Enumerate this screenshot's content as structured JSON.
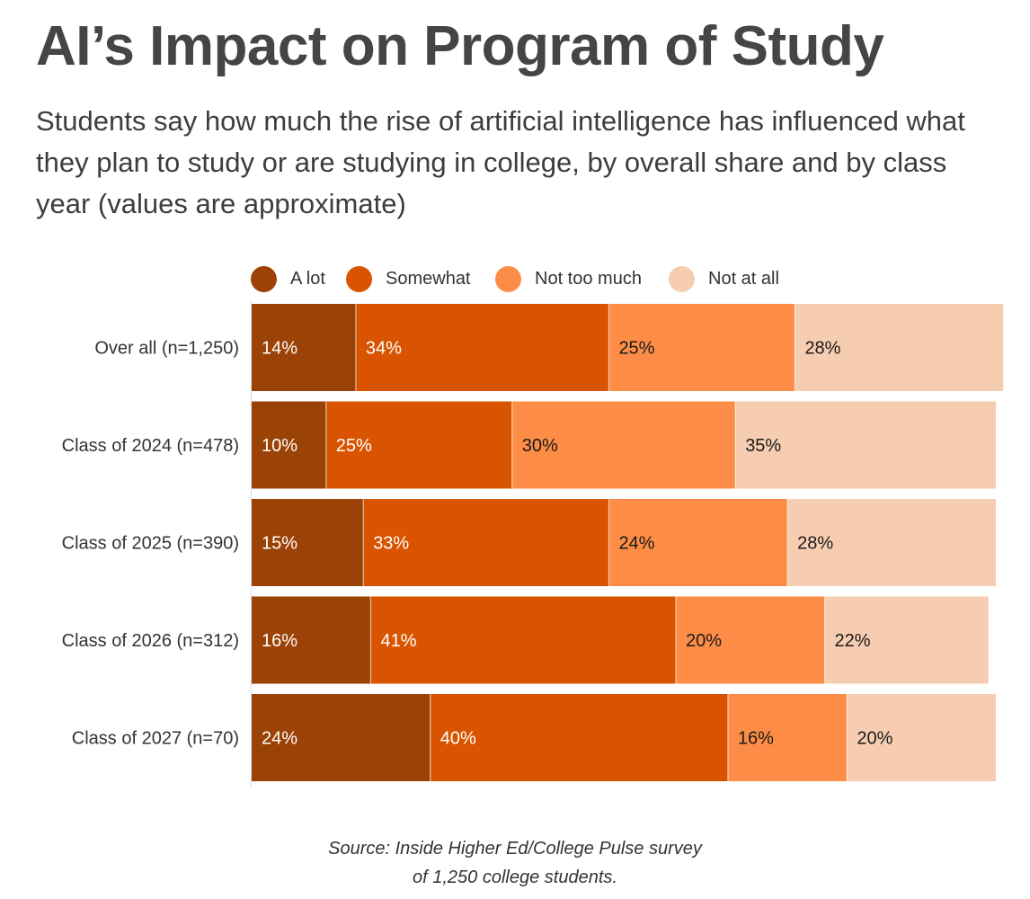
{
  "header": {
    "title": "AI’s Impact on Program of Study",
    "subtitle": "Students say how much the rise of artificial intelligence has influenced what they plan to study or are studying in college, by overall share and by class year (values are approximate)"
  },
  "legend": [
    {
      "label": "A lot",
      "color": "#9b4207"
    },
    {
      "label": "Somewhat",
      "color": "#d95400"
    },
    {
      "label": "Not too much",
      "color": "#fd8d46"
    },
    {
      "label": "Not at all",
      "color": "#f6cdb0"
    }
  ],
  "chart_data": {
    "type": "bar",
    "orientation": "horizontal",
    "stacked": true,
    "categories": [
      "Over all (n=1,250)",
      "Class of 2024 (n=478)",
      "Class of 2025 (n=390)",
      "Class of 2026 (n=312)",
      "Class of 2027 (n=70)"
    ],
    "series": [
      {
        "name": "A lot",
        "color": "#9b4207",
        "values": [
          14,
          10,
          15,
          16,
          24
        ],
        "labels": [
          "14%",
          "10%",
          "15%",
          "16%",
          "24%"
        ]
      },
      {
        "name": "Somewhat",
        "color": "#d95400",
        "values": [
          34,
          25,
          33,
          41,
          40
        ],
        "labels": [
          "34%",
          "25%",
          "33%",
          "41%",
          "40%"
        ]
      },
      {
        "name": "Not too much",
        "color": "#fd8d46",
        "values": [
          25,
          30,
          24,
          20,
          16
        ],
        "labels": [
          "25%",
          "30%",
          "24%",
          "20%",
          "16%"
        ]
      },
      {
        "name": "Not at all",
        "color": "#f6cdb0",
        "values": [
          28,
          35,
          28,
          22,
          20
        ],
        "labels": [
          "28%",
          "35%",
          "28%",
          "22%",
          "20%"
        ]
      }
    ],
    "xlim": [
      0,
      100
    ],
    "label_colors": [
      "#ffffff",
      "#ffffff",
      "#1a1a1a",
      "#1a1a1a"
    ]
  },
  "footer": {
    "source_line1": "Source: Inside Higher Ed/College Pulse survey",
    "source_line2": "of 1,250 college students."
  }
}
